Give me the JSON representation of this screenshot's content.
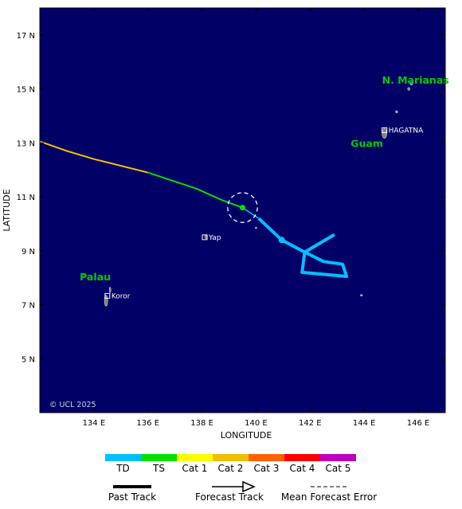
{
  "map": {
    "background": "#000066",
    "land_color": "#808080",
    "x_axis_label": "LONGITUDE",
    "y_axis_label": "LATITUDE",
    "lon_range": [
      132,
      147
    ],
    "lat_range": [
      3,
      18
    ],
    "lon_ticks": [
      {
        "value": 134,
        "label": "134 E"
      },
      {
        "value": 136,
        "label": "136 E"
      },
      {
        "value": 138,
        "label": "138 E"
      },
      {
        "value": 140,
        "label": "140 E"
      },
      {
        "value": 142,
        "label": "142 E"
      },
      {
        "value": 144,
        "label": "144 E"
      },
      {
        "value": 146,
        "label": "146 E"
      }
    ],
    "lat_ticks": [
      {
        "value": 5,
        "label": "5 N"
      },
      {
        "value": 7,
        "label": "7 N"
      },
      {
        "value": 9,
        "label": "9 N"
      },
      {
        "value": 11,
        "label": "11 N"
      },
      {
        "value": 13,
        "label": "13 N"
      },
      {
        "value": 15,
        "label": "15 N"
      },
      {
        "value": 17,
        "label": "17 N"
      }
    ],
    "regions": [
      {
        "name": "N. Marianas",
        "lon": 145.9,
        "lat": 15.2,
        "color": "#00cc00"
      },
      {
        "name": "Guam",
        "lon": 144.1,
        "lat": 12.85,
        "color": "#00cc00"
      },
      {
        "name": "Palau",
        "lon": 134.05,
        "lat": 7.9,
        "color": "#00cc00"
      }
    ],
    "places": [
      {
        "name": "HAGATNA",
        "lon": 144.75,
        "lat": 13.47
      },
      {
        "name": "Yap",
        "lon": 138.1,
        "lat": 9.5
      },
      {
        "name": "Koror",
        "lon": 134.5,
        "lat": 7.33
      }
    ],
    "copyright": "© UCL 2025"
  },
  "track": {
    "past_segments": [
      {
        "color": "#f0c000",
        "points": [
          [
            132.0,
            13.05
          ],
          [
            133.0,
            12.7
          ],
          [
            134.0,
            12.4
          ],
          [
            135.0,
            12.15
          ],
          [
            136.0,
            11.9
          ]
        ]
      },
      {
        "color": "#00e000",
        "points": [
          [
            136.0,
            11.9
          ],
          [
            137.8,
            11.3
          ],
          [
            138.8,
            10.85
          ],
          [
            139.5,
            10.6
          ]
        ]
      }
    ],
    "current_position": {
      "lon": 139.5,
      "lat": 10.6,
      "color": "#00e000",
      "error_radius_deg": 0.55
    },
    "forecast": {
      "color": "#00c0ff",
      "points": [
        [
          139.5,
          10.6
        ],
        [
          140.1,
          10.2
        ],
        [
          140.95,
          9.4
        ],
        [
          141.8,
          8.95
        ],
        [
          142.9,
          9.6
        ]
      ],
      "marker": {
        "lon": 140.95,
        "lat": 9.4
      }
    },
    "loop": {
      "color": "#00c0ff",
      "points": [
        [
          141.8,
          8.95
        ],
        [
          142.5,
          8.6
        ],
        [
          143.2,
          8.5
        ],
        [
          143.35,
          8.05
        ],
        [
          141.7,
          8.2
        ],
        [
          141.8,
          8.95
        ]
      ]
    }
  },
  "legend": {
    "colorbar": [
      {
        "label": "TD",
        "color": "#00c0ff"
      },
      {
        "label": "TS",
        "color": "#00e000"
      },
      {
        "label": "Cat 1",
        "color": "#ffff00"
      },
      {
        "label": "Cat 2",
        "color": "#f0c000"
      },
      {
        "label": "Cat 3",
        "color": "#ff6000"
      },
      {
        "label": "Cat 4",
        "color": "#ff0000"
      },
      {
        "label": "Cat 5",
        "color": "#c000c0"
      }
    ],
    "past_track": "Past Track",
    "forecast_track": "Forecast Track",
    "mean_forecast_error": "Mean Forecast Error"
  }
}
